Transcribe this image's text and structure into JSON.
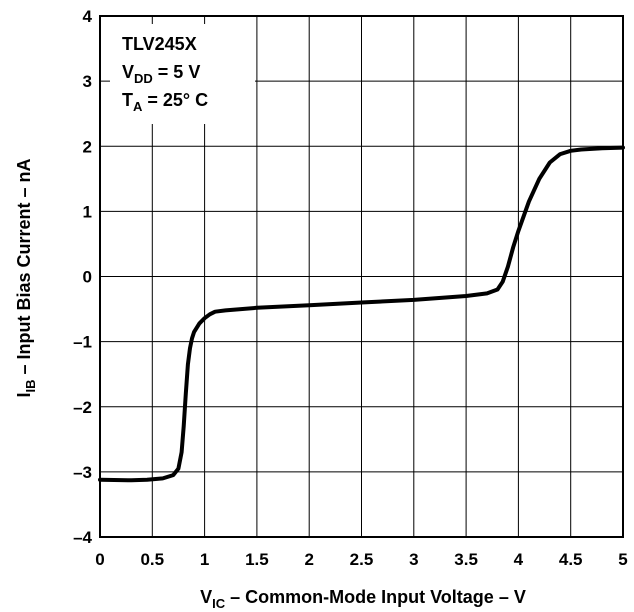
{
  "chart_data": {
    "type": "line",
    "title": "",
    "xlabel": {
      "main": "V",
      "sub": "IC",
      "rest": " – Common-Mode Input Voltage – V"
    },
    "ylabel": {
      "main": "I",
      "sub": "IB",
      "rest": " – Input Bias Current – nA"
    },
    "xlim": [
      0,
      5
    ],
    "ylim": [
      -4,
      4
    ],
    "grid": true,
    "x_ticks": [
      "0",
      "0.5",
      "1",
      "1.5",
      "2",
      "2.5",
      "3",
      "3.5",
      "4",
      "4.5",
      "5"
    ],
    "y_ticks": [
      "–4",
      "–3",
      "–2",
      "–1",
      "0",
      "1",
      "2",
      "3",
      "4"
    ],
    "annotation": {
      "line1": "TLV245X",
      "line2_main": "V",
      "line2_sub": "DD",
      "line2_rest": " = 5 V",
      "line3_main": "T",
      "line3_sub": "A",
      "line3_rest": " = 25° C"
    },
    "series": [
      {
        "x": [
          0,
          0.3,
          0.45,
          0.6,
          0.7,
          0.75,
          0.78,
          0.8,
          0.82,
          0.84,
          0.86,
          0.88,
          0.9,
          0.95,
          1.0,
          1.05,
          1.1,
          1.2,
          1.5,
          2.0,
          2.5,
          3.0,
          3.5,
          3.7,
          3.8,
          3.85,
          3.9,
          3.95,
          4.0,
          4.1,
          4.2,
          4.3,
          4.4,
          4.5,
          4.6,
          4.8,
          5.0
        ],
        "y": [
          -3.12,
          -3.13,
          -3.12,
          -3.1,
          -3.05,
          -2.95,
          -2.7,
          -2.3,
          -1.8,
          -1.35,
          -1.1,
          -0.95,
          -0.85,
          -0.72,
          -0.64,
          -0.58,
          -0.54,
          -0.52,
          -0.48,
          -0.44,
          -0.4,
          -0.36,
          -0.3,
          -0.26,
          -0.2,
          -0.08,
          0.15,
          0.45,
          0.7,
          1.15,
          1.5,
          1.75,
          1.88,
          1.93,
          1.95,
          1.97,
          1.98
        ]
      }
    ]
  }
}
